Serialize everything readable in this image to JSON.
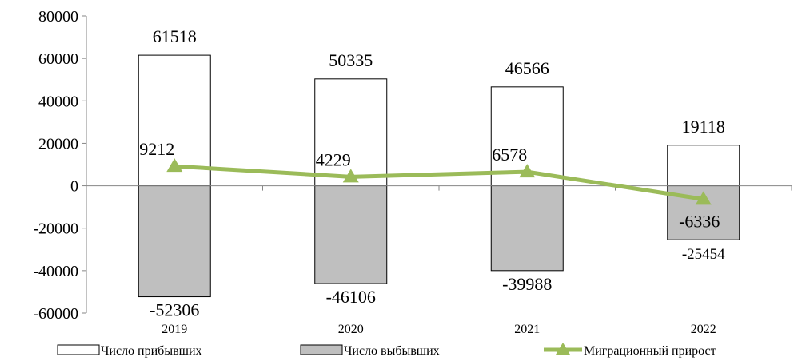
{
  "chart_data": {
    "type": "bar",
    "categories": [
      "2019",
      "2020",
      "2021",
      "2022"
    ],
    "series": [
      {
        "name": "Число прибывших",
        "type": "bar",
        "values": [
          61518,
          50335,
          46566,
          19118
        ]
      },
      {
        "name": "Число выбывших",
        "type": "bar",
        "values": [
          -52306,
          -46106,
          -39988,
          -25454
        ]
      },
      {
        "name": "Миграционный прирост",
        "type": "line",
        "values": [
          9212,
          4229,
          6578,
          -6336
        ]
      }
    ],
    "ylim": [
      -60000,
      80000
    ],
    "yticks": [
      80000,
      60000,
      40000,
      20000,
      0,
      -20000,
      -40000,
      -60000
    ],
    "legend_position": "bottom",
    "grid": false,
    "colors": {
      "arrivals_fill": "#ffffff",
      "departures_fill": "#bfbfbf",
      "growth_line": "#9bbb59"
    }
  }
}
